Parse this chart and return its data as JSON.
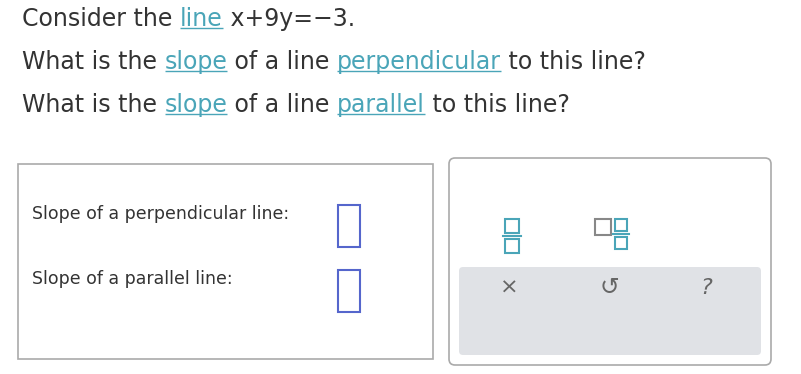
{
  "background_color": "#ffffff",
  "link_color": "#4aa5b8",
  "text_color": "#333333",
  "box_border_color": "#aaaaaa",
  "input_box_color": "#5566cc",
  "symbol_color": "#4aa5b8",
  "symbol_color2": "#888888",
  "action_bg": "#e0e2e6",
  "action_text": "#666666",
  "font_size_main": 17,
  "font_size_label": 12.5,
  "font_size_symbol": 14,
  "line1_parts": [
    [
      "Consider the ",
      "#333333",
      false
    ],
    [
      "line",
      "#4aa5b8",
      true
    ],
    [
      " x+9y=−3.",
      "#333333",
      false
    ]
  ],
  "line2_parts": [
    [
      "What is the ",
      "#333333",
      false
    ],
    [
      "slope",
      "#4aa5b8",
      true
    ],
    [
      " of a line ",
      "#333333",
      false
    ],
    [
      "perpendicular",
      "#4aa5b8",
      true
    ],
    [
      " to this line?",
      "#333333",
      false
    ]
  ],
  "line3_parts": [
    [
      "What is the ",
      "#333333",
      false
    ],
    [
      "slope",
      "#4aa5b8",
      true
    ],
    [
      " of a line ",
      "#333333",
      false
    ],
    [
      "parallel",
      "#4aa5b8",
      true
    ],
    [
      " to this line?",
      "#333333",
      false
    ]
  ],
  "label1": "Slope of a perpendicular line:",
  "label2": "Slope of a parallel line:"
}
